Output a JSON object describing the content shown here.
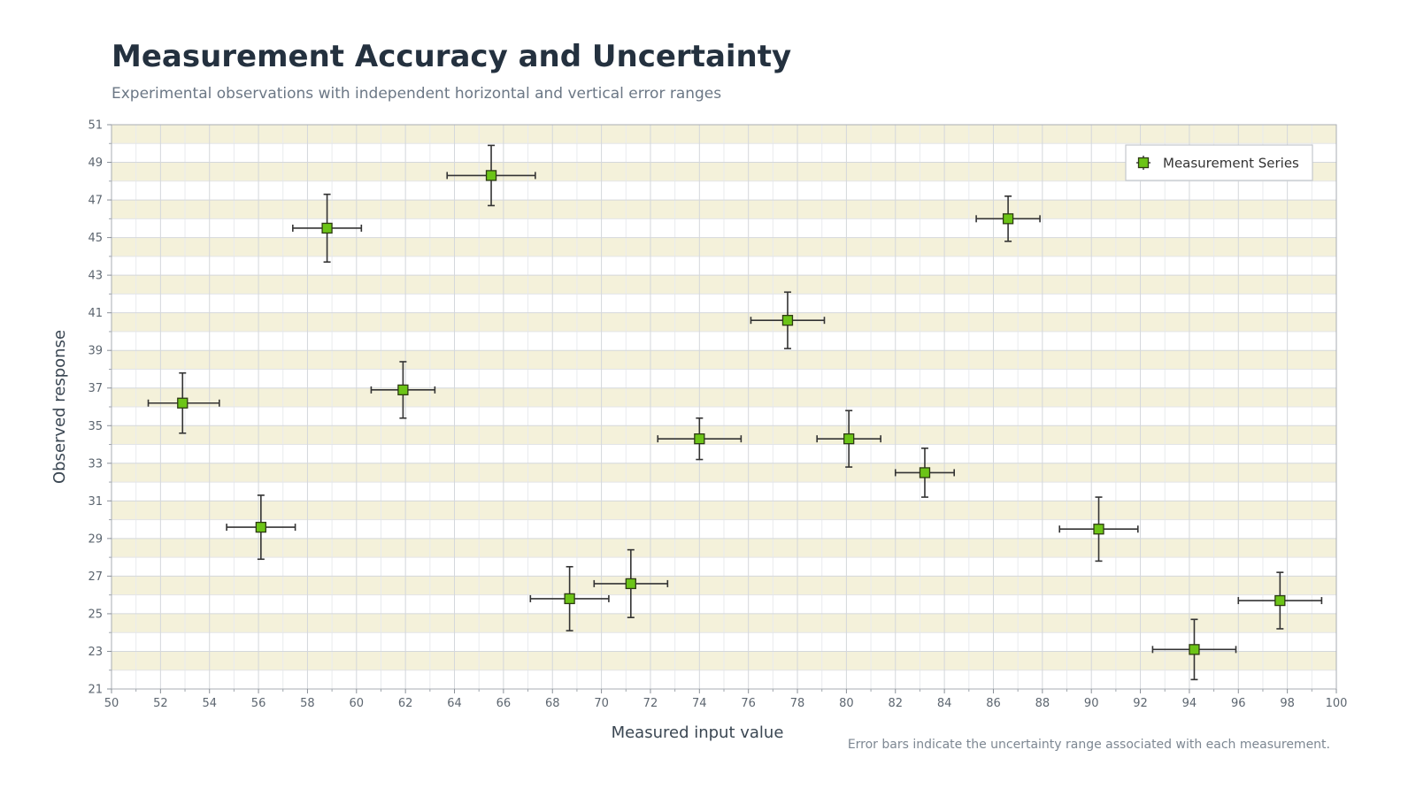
{
  "chart_data": {
    "type": "scatter",
    "title": "Measurement Accuracy and Uncertainty",
    "subtitle": "Experimental observations with independent horizontal and vertical error ranges",
    "xlabel": "Measured input value",
    "ylabel": "Observed response",
    "xlim": [
      50,
      100
    ],
    "ylim": [
      21,
      51
    ],
    "xticks": [
      50,
      52,
      54,
      56,
      58,
      60,
      62,
      64,
      66,
      68,
      70,
      72,
      74,
      76,
      78,
      80,
      82,
      84,
      86,
      88,
      90,
      92,
      94,
      96,
      98,
      100
    ],
    "yticks": [
      21,
      23,
      25,
      27,
      29,
      31,
      33,
      35,
      37,
      39,
      41,
      43,
      45,
      47,
      49,
      51
    ],
    "grid": true,
    "legend_position": "top-right",
    "colors": {
      "marker_fill": "#6cc417",
      "marker_edge": "#2d3a12",
      "error_bar": "#333333",
      "band": "#f4f1da"
    },
    "series": [
      {
        "name": "Measurement Series",
        "points": [
          {
            "x": 52.9,
            "y": 36.2,
            "x_err": [
              51.5,
              54.4
            ],
            "y_err": [
              34.6,
              37.8
            ]
          },
          {
            "x": 56.1,
            "y": 29.6,
            "x_err": [
              54.7,
              57.5
            ],
            "y_err": [
              27.9,
              31.3
            ]
          },
          {
            "x": 58.8,
            "y": 45.5,
            "x_err": [
              57.4,
              60.2
            ],
            "y_err": [
              43.7,
              47.3
            ]
          },
          {
            "x": 61.9,
            "y": 36.9,
            "x_err": [
              60.6,
              63.2
            ],
            "y_err": [
              35.4,
              38.4
            ]
          },
          {
            "x": 65.5,
            "y": 48.3,
            "x_err": [
              63.7,
              67.3
            ],
            "y_err": [
              46.7,
              49.9
            ]
          },
          {
            "x": 68.7,
            "y": 25.8,
            "x_err": [
              67.1,
              70.3
            ],
            "y_err": [
              24.1,
              27.5
            ]
          },
          {
            "x": 71.2,
            "y": 26.6,
            "x_err": [
              69.7,
              72.7
            ],
            "y_err": [
              24.8,
              28.4
            ]
          },
          {
            "x": 74.0,
            "y": 34.3,
            "x_err": [
              72.3,
              75.7
            ],
            "y_err": [
              33.2,
              35.4
            ]
          },
          {
            "x": 77.6,
            "y": 40.6,
            "x_err": [
              76.1,
              79.1
            ],
            "y_err": [
              39.1,
              42.1
            ]
          },
          {
            "x": 80.1,
            "y": 34.3,
            "x_err": [
              78.8,
              81.4
            ],
            "y_err": [
              32.8,
              35.8
            ]
          },
          {
            "x": 83.2,
            "y": 32.5,
            "x_err": [
              82.0,
              84.4
            ],
            "y_err": [
              31.2,
              33.8
            ]
          },
          {
            "x": 86.6,
            "y": 46.0,
            "x_err": [
              85.3,
              87.9
            ],
            "y_err": [
              44.8,
              47.2
            ]
          },
          {
            "x": 90.3,
            "y": 29.5,
            "x_err": [
              88.7,
              91.9
            ],
            "y_err": [
              27.8,
              31.2
            ]
          },
          {
            "x": 94.2,
            "y": 23.1,
            "x_err": [
              92.5,
              95.9
            ],
            "y_err": [
              21.5,
              24.7
            ]
          },
          {
            "x": 97.7,
            "y": 25.7,
            "x_err": [
              96.0,
              99.4
            ],
            "y_err": [
              24.2,
              27.2
            ]
          }
        ]
      }
    ],
    "footnote": "Error bars indicate the uncertainty range associated with each measurement."
  }
}
